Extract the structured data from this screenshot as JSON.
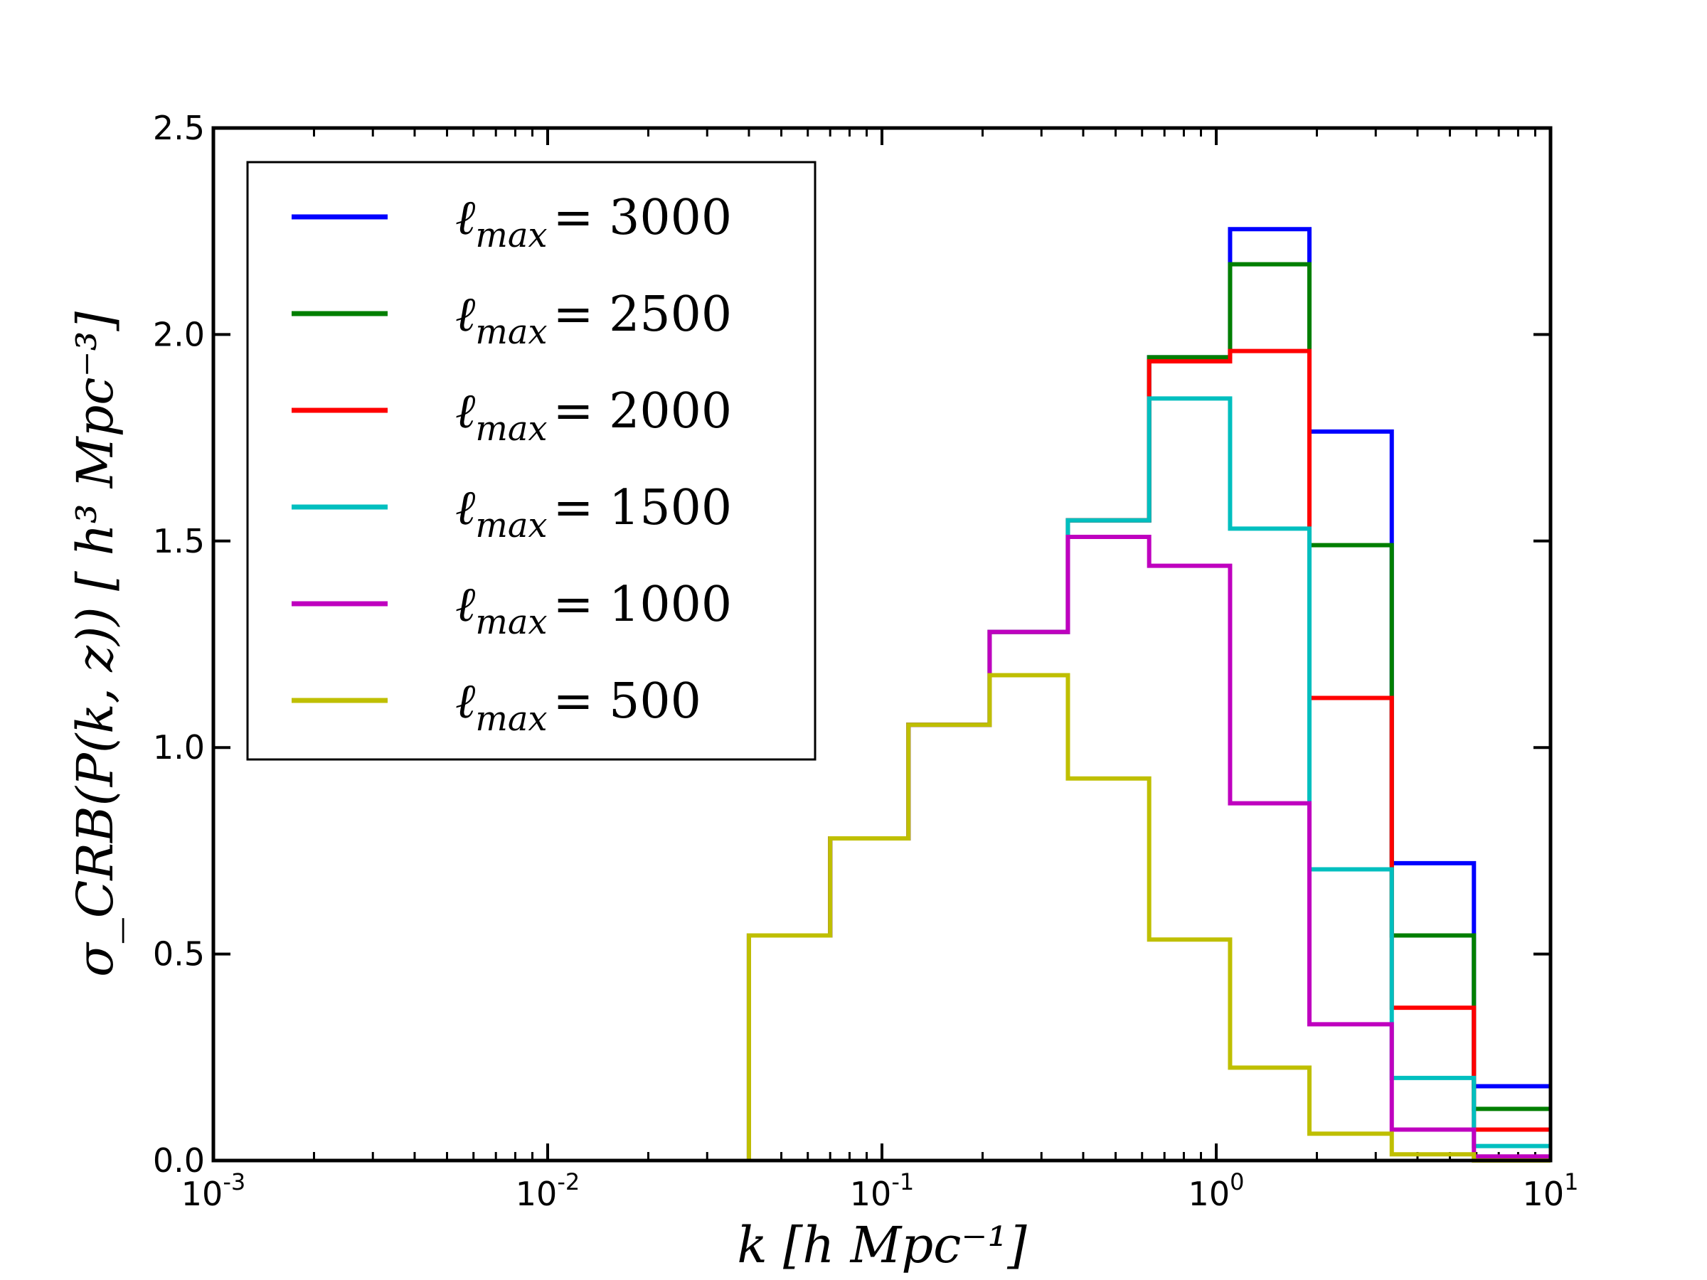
{
  "chart_data": {
    "type": "line",
    "style": "step",
    "title": "",
    "xlabel": "k [h Mpc⁻¹]",
    "ylabel": "σ_CRB(P(k, z)) [ h³ Mpc⁻³]",
    "xscale": "log",
    "xlim": [
      0.001,
      10
    ],
    "ylim": [
      0,
      2.5
    ],
    "x_ticks": [
      {
        "value": 0.001,
        "base": "10",
        "exp": "-3"
      },
      {
        "value": 0.01,
        "base": "10",
        "exp": "-2"
      },
      {
        "value": 0.1,
        "base": "10",
        "exp": "-1"
      },
      {
        "value": 1,
        "base": "10",
        "exp": "0"
      },
      {
        "value": 10,
        "base": "10",
        "exp": "1"
      }
    ],
    "y_ticks": [
      "0.0",
      "0.5",
      "1.0",
      "1.5",
      "2.0",
      "2.5"
    ],
    "legend_position": "upper-left",
    "bin_edges": [
      0.04,
      0.07,
      0.12,
      0.21,
      0.36,
      0.63,
      1.1,
      1.9,
      3.35,
      5.9,
      10
    ],
    "series": [
      {
        "name": "ℓmax = 3000",
        "label_sub": "max",
        "label_value": "3000",
        "color": "#0000ff",
        "values": [
          0.545,
          0.78,
          1.055,
          1.28,
          1.55,
          1.945,
          2.255,
          1.765,
          0.72,
          0.18
        ]
      },
      {
        "name": "ℓmax = 2500",
        "label_sub": "max",
        "label_value": "2500",
        "color": "#007f00",
        "values": [
          0.545,
          0.78,
          1.055,
          1.28,
          1.55,
          1.945,
          2.17,
          1.49,
          0.545,
          0.125
        ]
      },
      {
        "name": "ℓmax = 2000",
        "label_sub": "max",
        "label_value": "2000",
        "color": "#ff0000",
        "values": [
          0.545,
          0.78,
          1.055,
          1.28,
          1.55,
          1.935,
          1.96,
          1.12,
          0.37,
          0.075
        ]
      },
      {
        "name": "ℓmax = 1500",
        "label_sub": "max",
        "label_value": "1500",
        "color": "#00bfbf",
        "values": [
          0.545,
          0.78,
          1.055,
          1.28,
          1.55,
          1.845,
          1.53,
          0.705,
          0.2,
          0.035
        ]
      },
      {
        "name": "ℓmax = 1000",
        "label_sub": "max",
        "label_value": "1000",
        "color": "#bf00bf",
        "values": [
          0.545,
          0.78,
          1.055,
          1.28,
          1.51,
          1.44,
          0.865,
          0.33,
          0.075,
          0.01
        ]
      },
      {
        "name": "ℓmax = 500",
        "label_sub": "max",
        "label_value": "500",
        "color": "#bfbf00",
        "values": [
          0.545,
          0.78,
          1.055,
          1.175,
          0.925,
          0.535,
          0.225,
          0.065,
          0.015,
          0.0
        ]
      }
    ]
  }
}
